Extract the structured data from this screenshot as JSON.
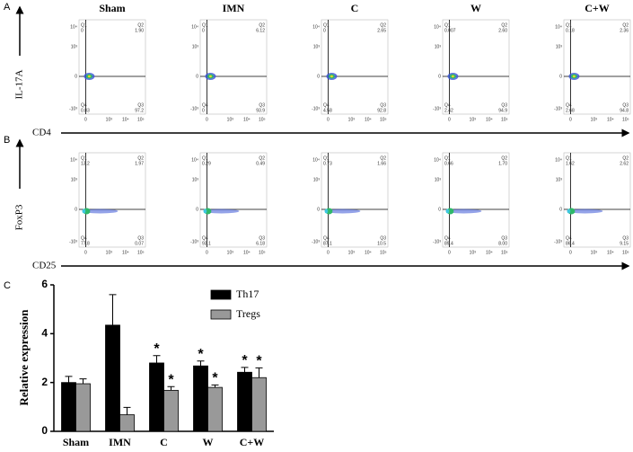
{
  "panel_a": {
    "label": "A",
    "y_axis_label": "IL-17A",
    "x_axis_label": "CD4",
    "y_ticks": [
      "10⁴",
      "10³",
      "0",
      "-10³"
    ],
    "x_ticks": [
      "0",
      "10³",
      "10⁴",
      "10⁵"
    ],
    "plots": [
      {
        "title": "Sham",
        "quadrants": [
          {
            "name": "Q1",
            "value": "0"
          },
          {
            "name": "Q2",
            "value": "1.90"
          },
          {
            "name": "Q4",
            "value": "0.83"
          },
          {
            "name": "Q3",
            "value": "97.2"
          }
        ]
      },
      {
        "title": "IMN",
        "quadrants": [
          {
            "name": "Q1",
            "value": "0"
          },
          {
            "name": "Q2",
            "value": "6.12"
          },
          {
            "name": "Q4",
            "value": "0"
          },
          {
            "name": "Q3",
            "value": "93.9"
          }
        ]
      },
      {
        "title": "C",
        "quadrants": [
          {
            "name": "Q1",
            "value": "0"
          },
          {
            "name": "Q2",
            "value": "2.65"
          },
          {
            "name": "Q4",
            "value": "4.58"
          },
          {
            "name": "Q3",
            "value": "92.8"
          }
        ]
      },
      {
        "title": "W",
        "quadrants": [
          {
            "name": "Q1",
            "value": "0.007"
          },
          {
            "name": "Q2",
            "value": "2.60"
          },
          {
            "name": "Q4",
            "value": "2.42"
          },
          {
            "name": "Q3",
            "value": "94.9"
          }
        ]
      },
      {
        "title": "C+W",
        "quadrants": [
          {
            "name": "Q1",
            "value": "0.18"
          },
          {
            "name": "Q2",
            "value": "2.36"
          },
          {
            "name": "Q4",
            "value": "2.68"
          },
          {
            "name": "Q3",
            "value": "94.8"
          }
        ]
      }
    ]
  },
  "panel_b": {
    "label": "B",
    "y_axis_label": "FoxP3",
    "x_axis_label": "CD25",
    "y_ticks": [
      "10⁴",
      "10³",
      "0",
      "-10³"
    ],
    "x_ticks": [
      "0",
      "10³",
      "10⁴",
      "10⁵"
    ],
    "plots": [
      {
        "quadrants": [
          {
            "name": "Q1",
            "value": "13.2"
          },
          {
            "name": "Q2",
            "value": "1.97"
          },
          {
            "name": "Q4",
            "value": "77.8"
          },
          {
            "name": "Q3",
            "value": "0.07"
          }
        ]
      },
      {
        "quadrants": [
          {
            "name": "Q1",
            "value": "0.29"
          },
          {
            "name": "Q2",
            "value": "0.49"
          },
          {
            "name": "Q4",
            "value": "93.1"
          },
          {
            "name": "Q3",
            "value": "6.18"
          }
        ]
      },
      {
        "quadrants": [
          {
            "name": "Q1",
            "value": "0.73"
          },
          {
            "name": "Q2",
            "value": "1.66"
          },
          {
            "name": "Q4",
            "value": "87.1"
          },
          {
            "name": "Q3",
            "value": "10.5"
          }
        ]
      },
      {
        "quadrants": [
          {
            "name": "Q1",
            "value": "0.66"
          },
          {
            "name": "Q2",
            "value": "1.70"
          },
          {
            "name": "Q4",
            "value": "89.4"
          },
          {
            "name": "Q3",
            "value": "8.00"
          }
        ]
      },
      {
        "quadrants": [
          {
            "name": "Q1",
            "value": "1.62"
          },
          {
            "name": "Q2",
            "value": "2.62"
          },
          {
            "name": "Q4",
            "value": "86.4"
          },
          {
            "name": "Q3",
            "value": "9.15"
          }
        ]
      }
    ]
  },
  "chart_data": {
    "type": "bar",
    "panel_label": "C",
    "y_axis_label": "Relative expression",
    "categories": [
      "Sham",
      "IMN",
      "C",
      "W",
      "C+W"
    ],
    "series": [
      {
        "name": "Th17",
        "color": "#000000",
        "values": [
          2.0,
          4.35,
          2.8,
          2.68,
          2.42
        ],
        "errors": [
          0.25,
          1.25,
          0.3,
          0.2,
          0.2
        ],
        "markers": [
          null,
          null,
          "*",
          "*",
          "*"
        ]
      },
      {
        "name": "Tregs",
        "color": "#999999",
        "values": [
          1.95,
          0.68,
          1.68,
          1.8,
          2.2
        ],
        "errors": [
          0.2,
          0.3,
          0.15,
          0.1,
          0.4
        ],
        "markers": [
          null,
          null,
          "*",
          "*",
          "*"
        ]
      }
    ],
    "ylim": [
      0,
      6
    ],
    "yticks": [
      0,
      2,
      4,
      6
    ],
    "legend": "top-right"
  }
}
